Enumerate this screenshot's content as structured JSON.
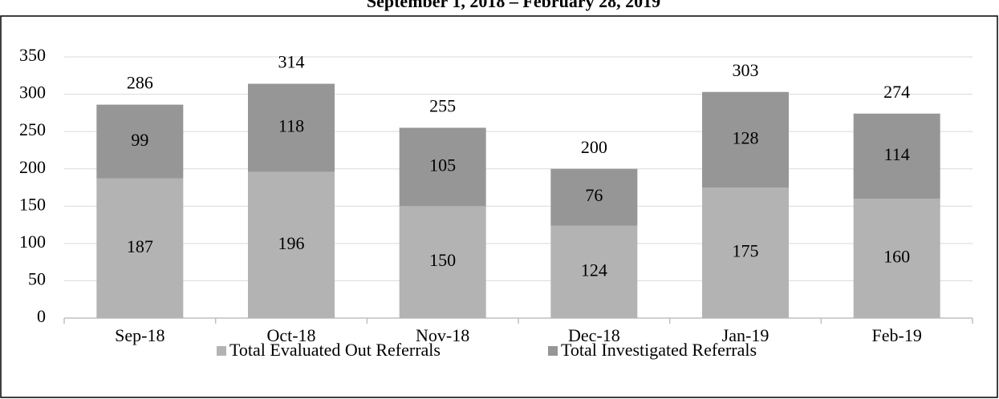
{
  "chart_data": {
    "type": "stacked_bar",
    "title": "September 1, 2018 – February 28, 2019",
    "categories": [
      "Sep-18",
      "Oct-18",
      "Nov-18",
      "Dec-18",
      "Jan-19",
      "Feb-19"
    ],
    "series": [
      {
        "name": "Total Evaluated Out Referrals",
        "color": "#b3b3b3",
        "values": [
          187,
          196,
          150,
          124,
          175,
          160
        ]
      },
      {
        "name": "Total Investigated Referrals",
        "color": "#969696",
        "values": [
          99,
          118,
          105,
          76,
          128,
          114
        ]
      }
    ],
    "totals": [
      286,
      314,
      255,
      200,
      303,
      274
    ],
    "ylim": [
      0,
      350
    ],
    "yticks": [
      0,
      50,
      100,
      150,
      200,
      250,
      300,
      350
    ],
    "grid": true,
    "legend": "bottom"
  }
}
